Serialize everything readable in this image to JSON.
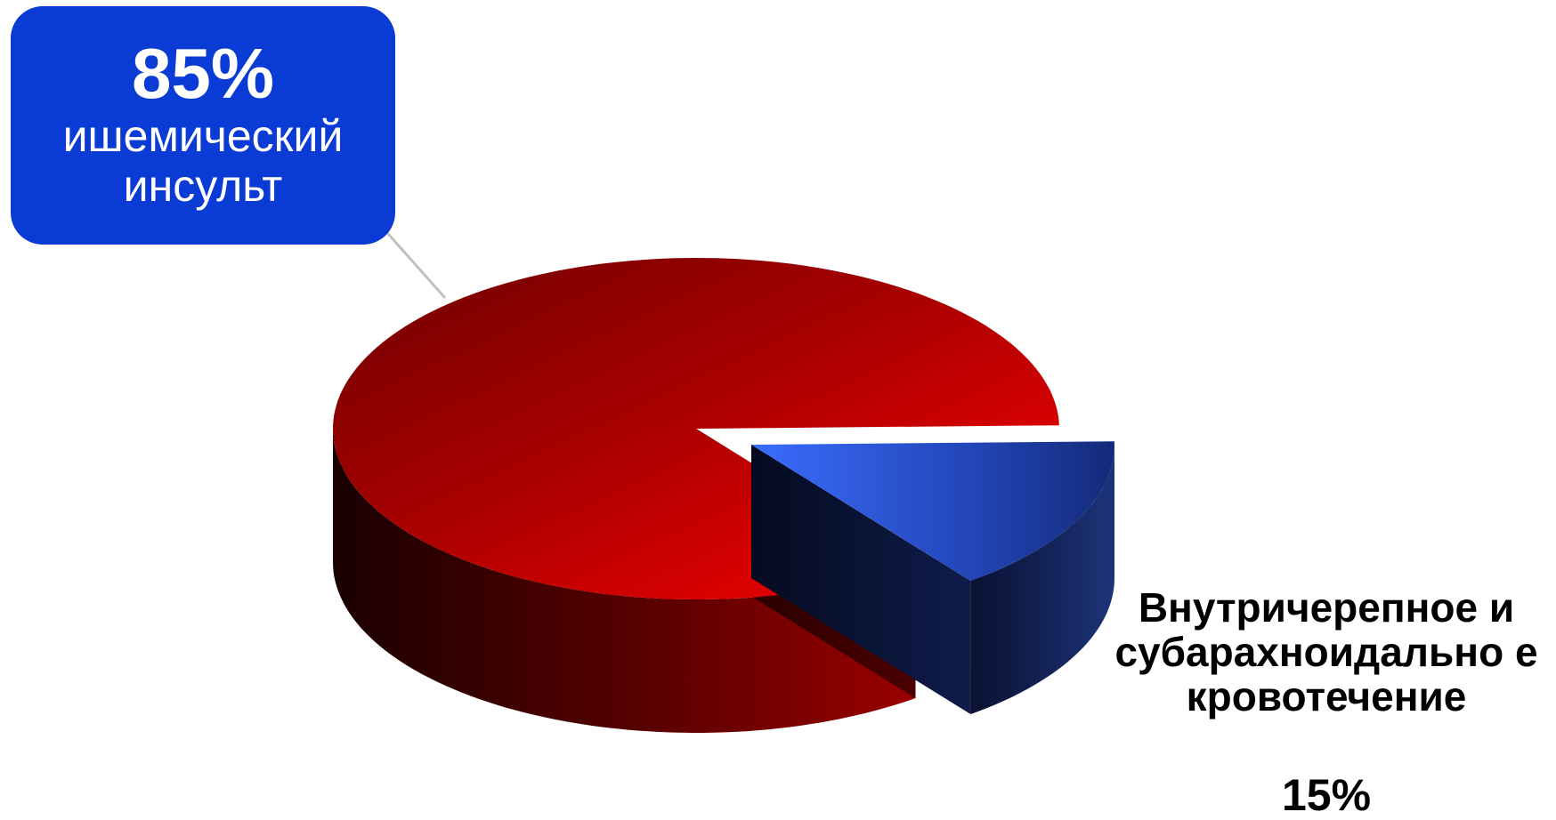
{
  "chart_data": {
    "type": "pie",
    "style": "3d-exploded",
    "slices": [
      {
        "label": "ишемический инсульт",
        "value": 85,
        "value_label": "85%",
        "color": "#cc0000"
      },
      {
        "label": "Внутричерепное и субарахноидальное кровотечение",
        "value": 15,
        "value_label": "15%",
        "color": "#2b5cff",
        "exploded": true
      }
    ]
  },
  "callout": {
    "percent": "85%",
    "label": "ишемический инсульт",
    "background": "#0a3bd4"
  },
  "slice_label": {
    "text": "Внутричерепное и субарахноидально е кровотечение",
    "percent": "15%"
  }
}
